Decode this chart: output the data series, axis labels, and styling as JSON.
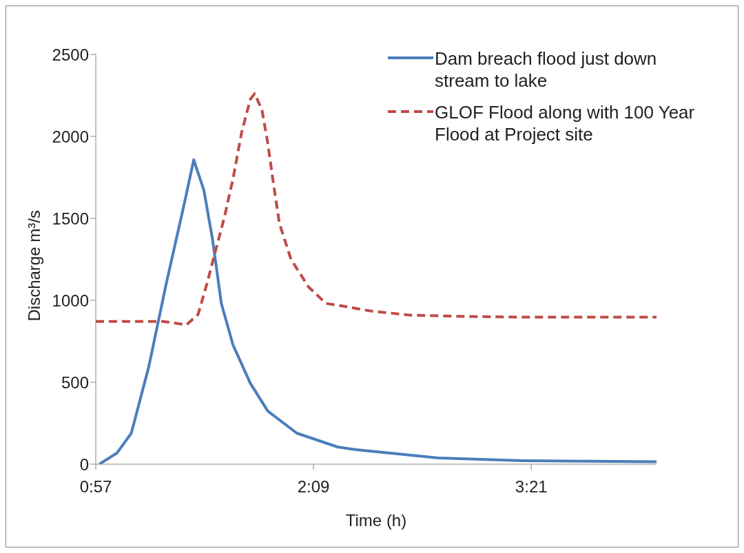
{
  "chart_data": {
    "type": "line",
    "xlabel": "Time (h)",
    "ylabel": "Discharge m³/s",
    "xlim": [
      0.95,
      4.04
    ],
    "xticks": [
      {
        "value": 0.95,
        "label": "0:57"
      },
      {
        "value": 2.15,
        "label": "2:09"
      },
      {
        "value": 3.35,
        "label": "3:21"
      }
    ],
    "ylim": [
      0,
      2500
    ],
    "yticks": [
      0,
      500,
      1000,
      1500,
      2000,
      2500
    ],
    "grid": false,
    "legend": "top right",
    "marker": "none",
    "series": [
      {
        "name": "Dam breach flood just down stream to lake",
        "color": "#4a7ebb",
        "line_style": "solid",
        "x": [
          0.97,
          1.066,
          1.146,
          1.194,
          1.242,
          1.29,
          1.338,
          1.386,
          1.434,
          1.49,
          1.546,
          1.594,
          1.642,
          1.706,
          1.802,
          1.898,
          2.058,
          2.282,
          2.386,
          2.838,
          3.306,
          4.04
        ],
        "values": [
          0,
          67,
          189,
          392,
          594,
          846,
          1099,
          1335,
          1570,
          1857,
          1671,
          1368,
          981,
          728,
          493,
          324,
          189,
          105,
          88,
          38,
          21,
          15
        ]
      },
      {
        "name": "GLOF Flood along with 100 Year Flood at Project site",
        "color": "#be4b48",
        "line_style": "dashed",
        "x": [
          0.95,
          1.32,
          1.45,
          1.514,
          1.562,
          1.61,
          1.658,
          1.706,
          1.754,
          1.802,
          1.826,
          1.866,
          1.898,
          1.93,
          1.962,
          2.026,
          2.122,
          2.218,
          2.314,
          2.462,
          2.686,
          2.99,
          3.29,
          4.04
        ],
        "values": [
          871,
          871,
          850,
          914,
          1099,
          1301,
          1503,
          1739,
          2025,
          2227,
          2261,
          2160,
          1958,
          1705,
          1469,
          1250,
          1082,
          981,
          964,
          935,
          909,
          901,
          897,
          897
        ]
      }
    ]
  }
}
